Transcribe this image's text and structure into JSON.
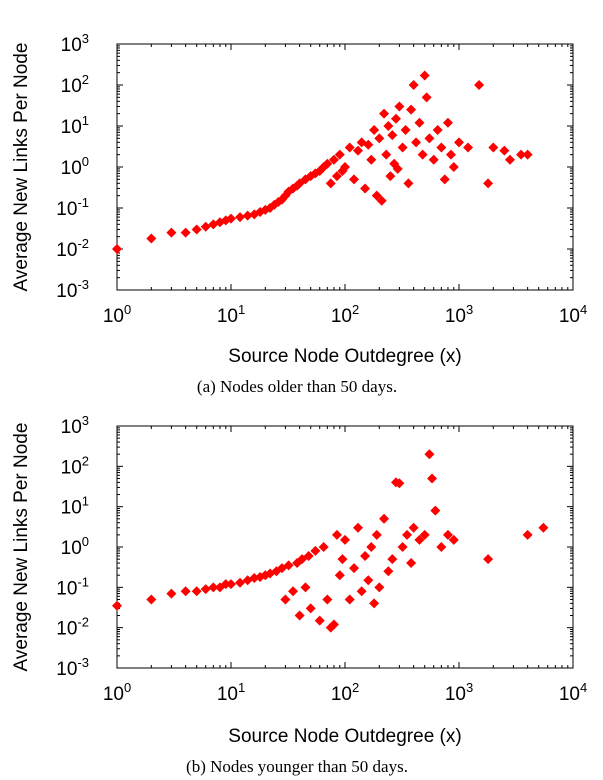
{
  "colors": {
    "marker": "#ff0000",
    "axis": "#000000"
  },
  "chart_data": [
    {
      "type": "scatter",
      "caption": "(a) Nodes older than 50 days.",
      "xlabel": "Source Node Outdegree (x)",
      "ylabel": "Average New Links Per Node",
      "xscale": "log",
      "yscale": "log",
      "xlim": [
        1,
        10000
      ],
      "ylim": [
        0.001,
        1000
      ],
      "xticks": [
        {
          "base": "10",
          "exp": "0"
        },
        {
          "base": "10",
          "exp": "1"
        },
        {
          "base": "10",
          "exp": "2"
        },
        {
          "base": "10",
          "exp": "3"
        },
        {
          "base": "10",
          "exp": "4"
        }
      ],
      "yticks": [
        {
          "base": "10",
          "exp": "-3"
        },
        {
          "base": "10",
          "exp": "-2"
        },
        {
          "base": "10",
          "exp": "-1"
        },
        {
          "base": "10",
          "exp": "0"
        },
        {
          "base": "10",
          "exp": "1"
        },
        {
          "base": "10",
          "exp": "2"
        },
        {
          "base": "10",
          "exp": "3"
        }
      ],
      "grid": false,
      "marker": "diamond",
      "points": [
        [
          1,
          0.01
        ],
        [
          2,
          0.018
        ],
        [
          3,
          0.025
        ],
        [
          4,
          0.025
        ],
        [
          5,
          0.03
        ],
        [
          6,
          0.035
        ],
        [
          7,
          0.04
        ],
        [
          8,
          0.045
        ],
        [
          9,
          0.05
        ],
        [
          10,
          0.055
        ],
        [
          12,
          0.06
        ],
        [
          14,
          0.065
        ],
        [
          16,
          0.07
        ],
        [
          18,
          0.08
        ],
        [
          20,
          0.09
        ],
        [
          22,
          0.1
        ],
        [
          24,
          0.12
        ],
        [
          26,
          0.14
        ],
        [
          28,
          0.16
        ],
        [
          30,
          0.2
        ],
        [
          32,
          0.25
        ],
        [
          35,
          0.3
        ],
        [
          38,
          0.35
        ],
        [
          40,
          0.4
        ],
        [
          45,
          0.5
        ],
        [
          50,
          0.6
        ],
        [
          55,
          0.7
        ],
        [
          60,
          0.8
        ],
        [
          65,
          1.0
        ],
        [
          70,
          1.2
        ],
        [
          75,
          0.4
        ],
        [
          80,
          1.5
        ],
        [
          85,
          0.6
        ],
        [
          90,
          2.0
        ],
        [
          95,
          0.8
        ],
        [
          100,
          1.0
        ],
        [
          110,
          3.0
        ],
        [
          120,
          0.5
        ],
        [
          130,
          2.5
        ],
        [
          140,
          4.0
        ],
        [
          150,
          0.3
        ],
        [
          160,
          3.5
        ],
        [
          170,
          1.5
        ],
        [
          180,
          8.0
        ],
        [
          190,
          0.2
        ],
        [
          200,
          5.0
        ],
        [
          210,
          0.15
        ],
        [
          220,
          20.0
        ],
        [
          230,
          2.0
        ],
        [
          240,
          10.0
        ],
        [
          250,
          0.6
        ],
        [
          260,
          6.0
        ],
        [
          270,
          1.2
        ],
        [
          280,
          15.0
        ],
        [
          290,
          0.9
        ],
        [
          300,
          30.0
        ],
        [
          320,
          3.0
        ],
        [
          340,
          8.0
        ],
        [
          360,
          0.4
        ],
        [
          380,
          25.0
        ],
        [
          400,
          100.0
        ],
        [
          420,
          4.0
        ],
        [
          450,
          12.0
        ],
        [
          480,
          2.0
        ],
        [
          500,
          170.0
        ],
        [
          520,
          50.0
        ],
        [
          550,
          5.0
        ],
        [
          600,
          1.5
        ],
        [
          650,
          8.0
        ],
        [
          700,
          3.0
        ],
        [
          750,
          0.5
        ],
        [
          800,
          12.0
        ],
        [
          850,
          2.0
        ],
        [
          900,
          1.0
        ],
        [
          1000,
          4.0
        ],
        [
          1200,
          3.0
        ],
        [
          1500,
          100.0
        ],
        [
          1800,
          0.4
        ],
        [
          2000,
          3.0
        ],
        [
          2500,
          2.5
        ],
        [
          2800,
          1.5
        ],
        [
          3500,
          2.0
        ],
        [
          4000,
          2.0
        ]
      ]
    },
    {
      "type": "scatter",
      "caption": "(b) Nodes younger than 50 days.",
      "xlabel": "Source Node Outdegree (x)",
      "ylabel": "Average New Links Per Node",
      "xscale": "log",
      "yscale": "log",
      "xlim": [
        1,
        10000
      ],
      "ylim": [
        0.001,
        1000
      ],
      "xticks": [
        {
          "base": "10",
          "exp": "0"
        },
        {
          "base": "10",
          "exp": "1"
        },
        {
          "base": "10",
          "exp": "2"
        },
        {
          "base": "10",
          "exp": "3"
        },
        {
          "base": "10",
          "exp": "4"
        }
      ],
      "yticks": [
        {
          "base": "10",
          "exp": "-3"
        },
        {
          "base": "10",
          "exp": "-2"
        },
        {
          "base": "10",
          "exp": "-1"
        },
        {
          "base": "10",
          "exp": "0"
        },
        {
          "base": "10",
          "exp": "1"
        },
        {
          "base": "10",
          "exp": "2"
        },
        {
          "base": "10",
          "exp": "3"
        }
      ],
      "grid": false,
      "marker": "diamond",
      "points": [
        [
          1,
          0.035
        ],
        [
          2,
          0.05
        ],
        [
          3,
          0.07
        ],
        [
          4,
          0.08
        ],
        [
          5,
          0.08
        ],
        [
          6,
          0.09
        ],
        [
          7,
          0.1
        ],
        [
          8,
          0.1
        ],
        [
          9,
          0.12
        ],
        [
          10,
          0.12
        ],
        [
          12,
          0.13
        ],
        [
          14,
          0.15
        ],
        [
          16,
          0.17
        ],
        [
          18,
          0.18
        ],
        [
          20,
          0.2
        ],
        [
          22,
          0.22
        ],
        [
          25,
          0.25
        ],
        [
          28,
          0.3
        ],
        [
          30,
          0.05
        ],
        [
          32,
          0.35
        ],
        [
          35,
          0.08
        ],
        [
          38,
          0.4
        ],
        [
          40,
          0.02
        ],
        [
          42,
          0.5
        ],
        [
          45,
          0.1
        ],
        [
          48,
          0.6
        ],
        [
          50,
          0.03
        ],
        [
          55,
          0.8
        ],
        [
          60,
          0.015
        ],
        [
          65,
          1.0
        ],
        [
          70,
          0.05
        ],
        [
          75,
          0.01
        ],
        [
          80,
          0.012
        ],
        [
          85,
          2.0
        ],
        [
          90,
          0.2
        ],
        [
          95,
          0.5
        ],
        [
          100,
          1.5
        ],
        [
          110,
          0.05
        ],
        [
          120,
          0.3
        ],
        [
          130,
          3.0
        ],
        [
          140,
          0.08
        ],
        [
          150,
          0.6
        ],
        [
          160,
          0.15
        ],
        [
          170,
          1.0
        ],
        [
          180,
          0.04
        ],
        [
          190,
          2.0
        ],
        [
          200,
          0.1
        ],
        [
          220,
          5.0
        ],
        [
          240,
          0.25
        ],
        [
          260,
          0.5
        ],
        [
          280,
          40.0
        ],
        [
          300,
          38.0
        ],
        [
          320,
          1.0
        ],
        [
          350,
          2.0
        ],
        [
          380,
          0.4
        ],
        [
          400,
          3.0
        ],
        [
          450,
          1.5
        ],
        [
          500,
          2.0
        ],
        [
          550,
          200.0
        ],
        [
          580,
          50.0
        ],
        [
          620,
          8.0
        ],
        [
          700,
          1.0
        ],
        [
          800,
          2.0
        ],
        [
          900,
          1.5
        ],
        [
          1800,
          0.5
        ],
        [
          4000,
          2.0
        ],
        [
          5500,
          3.0
        ]
      ]
    }
  ]
}
